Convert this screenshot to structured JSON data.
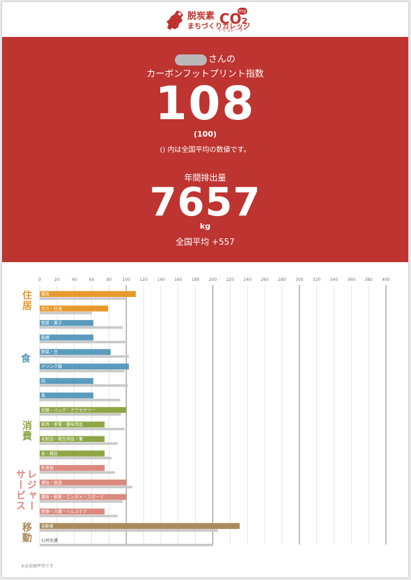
{
  "header": {
    "logo_title": "脱炭素",
    "logo_sub": "まちづくりカレッジ",
    "co2_my": "my",
    "co2_text": "CO₂",
    "co2_sub": "シミュレーター",
    "brand_color": "#c0322f"
  },
  "summary": {
    "user_suffix": "さんの",
    "footprint_title": "カーボンフットプリント指数",
    "footprint_value": "108",
    "footprint_avg": "(100)",
    "footprint_note": "() 内は全国平均の数値です。",
    "emission_title": "年間排出量",
    "emission_value": "7657",
    "emission_unit": "kg",
    "emission_diff": "全国平均 +557",
    "bg_color": "#be3430"
  },
  "chart_data": {
    "type": "bar",
    "orientation": "horizontal",
    "xlim": [
      0,
      400
    ],
    "xticks": [
      0,
      20,
      40,
      60,
      80,
      100,
      120,
      140,
      160,
      180,
      200,
      220,
      240,
      260,
      280,
      300,
      320,
      340,
      360,
      380,
      400
    ],
    "grid": true,
    "groups": [
      {
        "name": "住居",
        "color": "#e8992e",
        "vertical": true,
        "items": [
          {
            "label": "電気",
            "value": 111,
            "avg": 100
          },
          {
            "label": "ガス・灯油",
            "value": 79,
            "avg": 60
          }
        ]
      },
      {
        "name": "食",
        "color": "#5b9bbd",
        "vertical": false,
        "items": [
          {
            "label": "惣菜・菓子",
            "value": 62,
            "avg": 96
          },
          {
            "label": "穀類",
            "value": 62,
            "avg": 101
          },
          {
            "label": "野菜・豆",
            "value": 82,
            "avg": 103
          },
          {
            "label": "ドリンク類",
            "value": 103,
            "avg": 98
          },
          {
            "label": "肉",
            "value": 62,
            "avg": 102
          },
          {
            "label": "魚",
            "value": 62,
            "avg": 93
          }
        ]
      },
      {
        "name": "消費",
        "color": "#8ea644",
        "vertical": true,
        "items": [
          {
            "label": "衣類・バッグ・アクセサリー",
            "value": 100,
            "avg": 94
          },
          {
            "label": "家具・家電・趣味用品",
            "value": 75,
            "avg": 98
          },
          {
            "label": "化粧品・衛生用品・薬",
            "value": 75,
            "avg": 90
          },
          {
            "label": "本・雑誌",
            "value": 75,
            "avg": 83
          }
        ]
      },
      {
        "name": "レジャー サービス",
        "color": "#da8a7e",
        "vertical": true,
        "lines": [
          "レジャー",
          "サービス"
        ],
        "items": [
          {
            "label": "外食他",
            "value": 75,
            "avg": 87
          },
          {
            "label": "通信・放送",
            "value": 100,
            "avg": 107
          },
          {
            "label": "趣味・娯楽・エンタメ・スポーツ",
            "value": 100,
            "avg": 96
          },
          {
            "label": "医療・介護・ヘルスケア",
            "value": 75,
            "avg": 90
          }
        ]
      },
      {
        "name": "移動",
        "color": "#a88a5c",
        "vertical": true,
        "items": [
          {
            "label": "自動車",
            "value": 231,
            "avg": 206
          },
          {
            "label": "公共交通",
            "value": 0,
            "avg": 200
          }
        ]
      }
    ],
    "avg_color": "#c8c8c8",
    "footnote": "※は全国平均です"
  }
}
